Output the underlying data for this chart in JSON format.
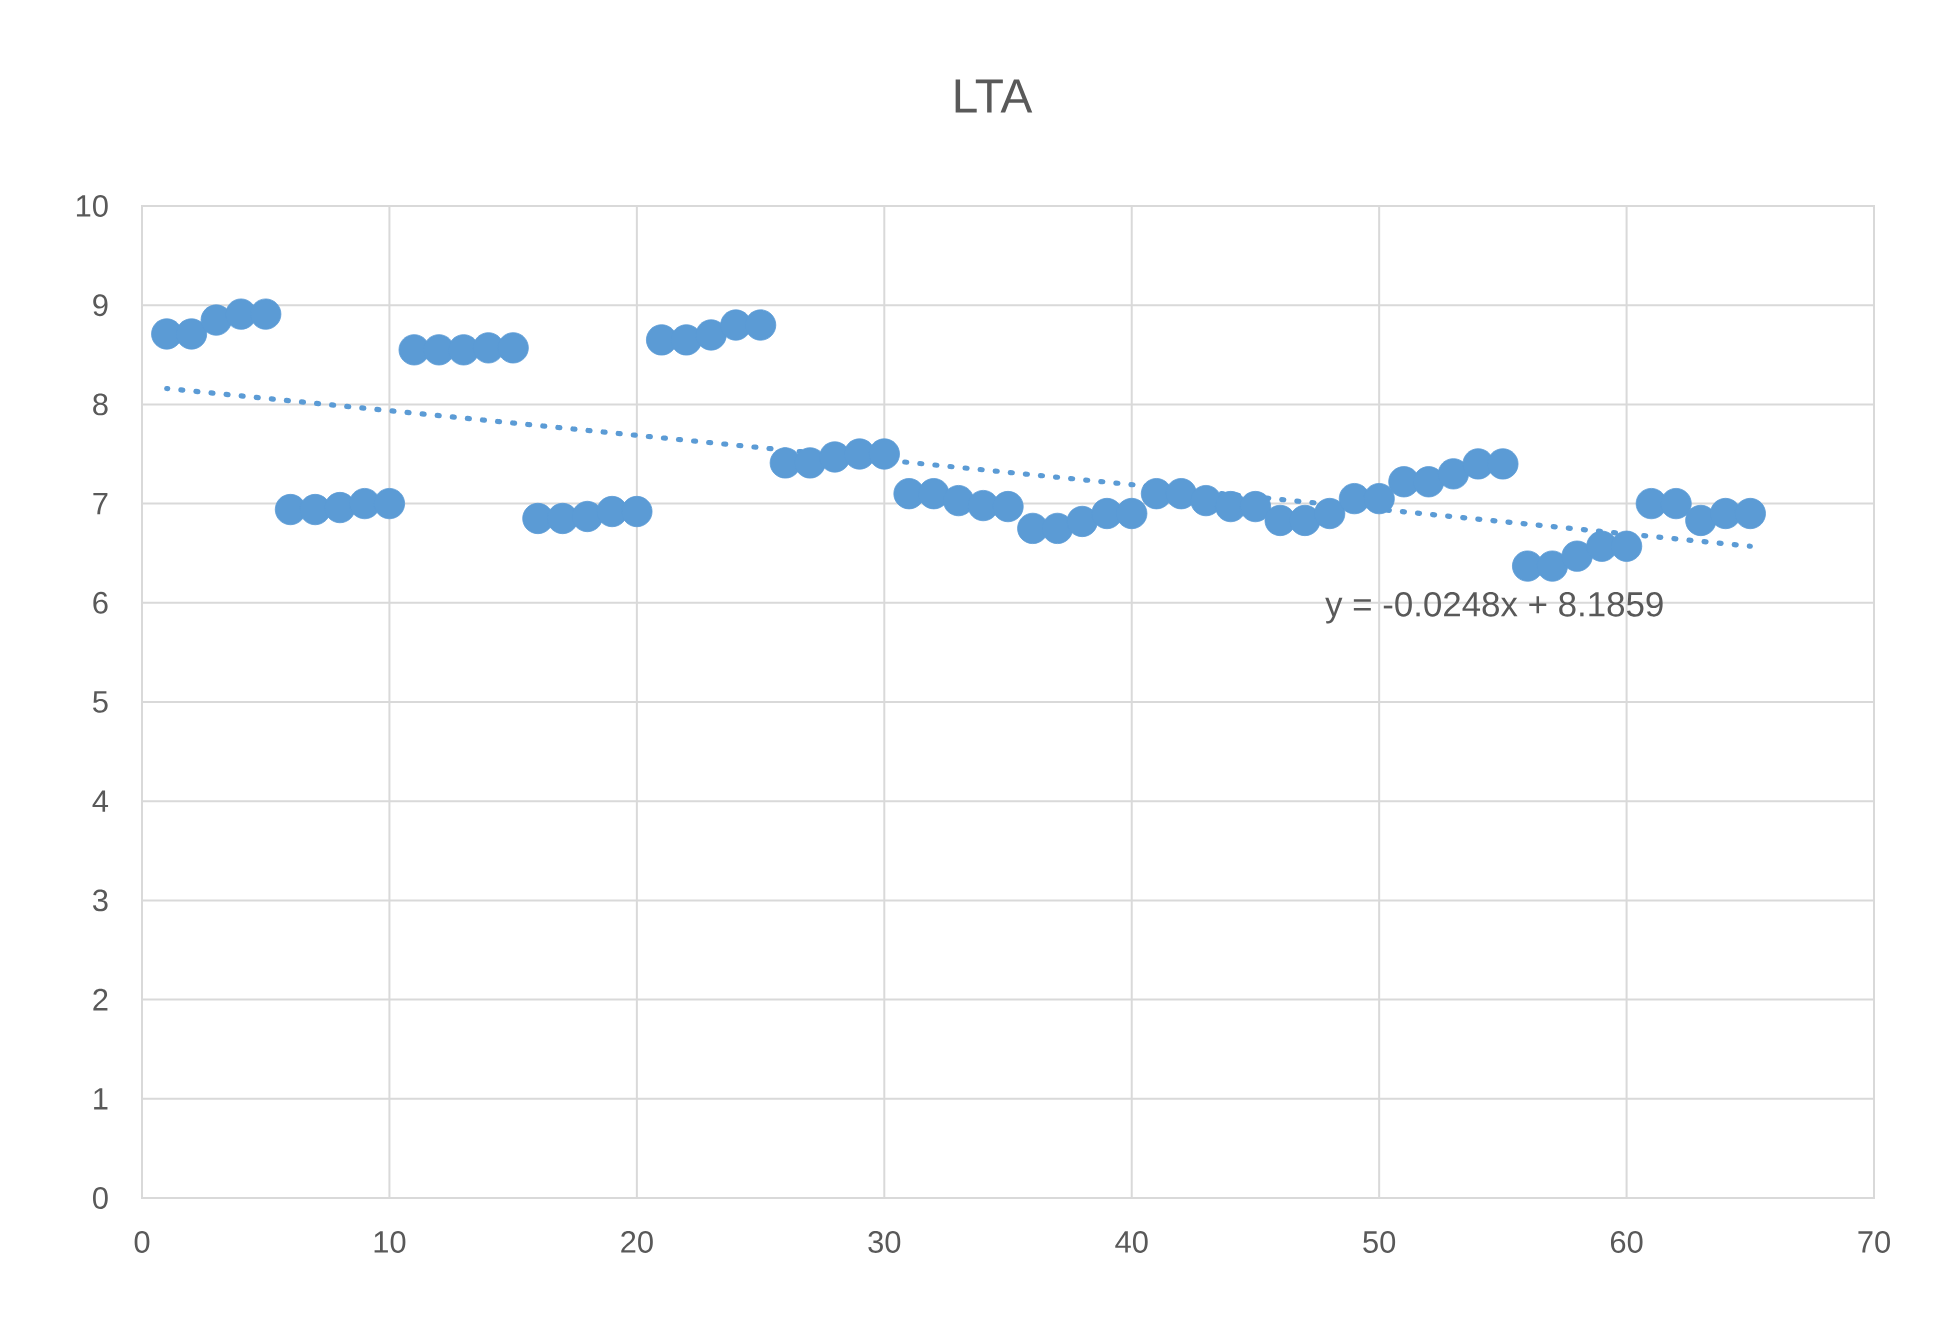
{
  "chart_data": {
    "type": "scatter",
    "title": "LTA",
    "x": [
      1,
      2,
      3,
      4,
      5,
      6,
      7,
      8,
      9,
      10,
      11,
      12,
      13,
      14,
      15,
      16,
      17,
      18,
      19,
      20,
      21,
      22,
      23,
      24,
      25,
      26,
      27,
      28,
      29,
      30,
      31,
      32,
      33,
      34,
      35,
      36,
      37,
      38,
      39,
      40,
      41,
      42,
      43,
      44,
      45,
      46,
      47,
      48,
      49,
      50,
      51,
      52,
      53,
      54,
      55,
      56,
      57,
      58,
      59,
      60,
      61,
      62,
      63,
      64,
      65
    ],
    "series": [
      {
        "color": "#5b9bd5",
        "values": [
          8.71,
          8.71,
          8.85,
          8.91,
          8.91,
          6.94,
          6.94,
          6.96,
          7.0,
          7.0,
          8.55,
          8.55,
          8.55,
          8.57,
          8.57,
          6.85,
          6.85,
          6.87,
          6.92,
          6.92,
          8.65,
          8.65,
          8.7,
          8.8,
          8.8,
          7.41,
          7.41,
          7.47,
          7.5,
          7.5,
          7.1,
          7.1,
          7.03,
          6.98,
          6.97,
          6.75,
          6.75,
          6.82,
          6.9,
          6.9,
          7.1,
          7.1,
          7.03,
          6.97,
          6.97,
          6.83,
          6.83,
          6.9,
          7.05,
          7.05,
          7.22,
          7.22,
          7.3,
          7.4,
          7.4,
          6.37,
          6.37,
          6.47,
          6.57,
          6.57,
          7.0,
          7.0,
          6.83,
          6.9,
          6.9
        ]
      },
      {
        "type": "line",
        "x": [
          1,
          65
        ],
        "values": [
          8.16,
          6.57
        ],
        "color": "#5b9bd5",
        "line_style": "dotted",
        "marker": "none"
      }
    ],
    "marker": "circle",
    "xlim": [
      0,
      70
    ],
    "xticks": [
      0,
      10,
      20,
      30,
      40,
      50,
      60,
      70
    ],
    "ylim": [
      0,
      10
    ],
    "yticks": [
      0,
      1,
      2,
      3,
      4,
      5,
      6,
      7,
      8,
      9,
      10
    ],
    "grid": true,
    "annotations": [
      "y = -0.0248x + 8.1859"
    ]
  }
}
